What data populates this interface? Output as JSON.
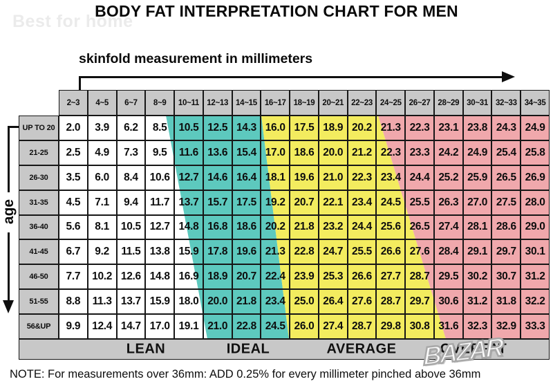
{
  "title": "BODY FAT INTERPRETATION CHART FOR MEN",
  "watermark_top": "Best for home",
  "watermark_bottom": "BAZAR",
  "note": "NOTE: For measurements over 36mm: ADD 0.25% for every millimeter pinched above 36mm",
  "colors": {
    "lean_white": "#FFFFFF",
    "ideal_teal": "#5DC9BE",
    "average_yellow": "#F3EC5F",
    "overfat_pink": "#F0A8AC",
    "header_gray": "#C8C8C8",
    "grid_line": "#161616"
  },
  "chart_data": {
    "type": "heatmap",
    "title": "BODY FAT INTERPRETATION CHART FOR MEN",
    "xlabel": "skinfold measurement in millimeters",
    "ylabel": "age",
    "columns": [
      "2~3",
      "4~5",
      "6~7",
      "8~9",
      "10~11",
      "12~13",
      "14~15",
      "16~17",
      "18~19",
      "20~21",
      "22~23",
      "24~25",
      "26~27",
      "28~29",
      "30~31",
      "32~33",
      "34~35"
    ],
    "rows": [
      "UP TO 20",
      "21-25",
      "26-30",
      "31-35",
      "36-40",
      "41-45",
      "46-50",
      "51-55",
      "56&UP"
    ],
    "values": [
      [
        "2.0",
        "3.9",
        "6.2",
        "8.5",
        "10.5",
        "12.5",
        "14.3",
        "16.0",
        "17.5",
        "18.9",
        "20.2",
        "21.3",
        "22.3",
        "23.1",
        "23.8",
        "24.3",
        "24.9"
      ],
      [
        "2.5",
        "4.9",
        "7.3",
        "9.5",
        "11.6",
        "13.6",
        "15.4",
        "17.0",
        "18.6",
        "20.0",
        "21.2",
        "22.3",
        "23.3",
        "24.2",
        "24.9",
        "25.4",
        "25.8"
      ],
      [
        "3.5",
        "6.0",
        "8.4",
        "10.6",
        "12.7",
        "14.6",
        "16.4",
        "18.1",
        "19.6",
        "21.0",
        "22.3",
        "23.4",
        "24.4",
        "25.2",
        "25.9",
        "26.5",
        "26.9"
      ],
      [
        "4.5",
        "7.1",
        "9.4",
        "11.7",
        "13.7",
        "15.7",
        "17.5",
        "19.2",
        "20.7",
        "22.1",
        "23.4",
        "24.5",
        "25.5",
        "26.3",
        "27.0",
        "27.5",
        "28.0"
      ],
      [
        "5.6",
        "8.1",
        "10.5",
        "12.7",
        "14.8",
        "16.8",
        "18.6",
        "20.2",
        "21.8",
        "23.2",
        "24.4",
        "25.6",
        "26.5",
        "27.4",
        "28.1",
        "28.6",
        "29.0"
      ],
      [
        "6.7",
        "9.2",
        "11.5",
        "13.8",
        "15.9",
        "17.8",
        "19.6",
        "21.3",
        "22.8",
        "24.7",
        "25.5",
        "26.6",
        "27.6",
        "28.4",
        "29.1",
        "29.7",
        "30.1"
      ],
      [
        "7.7",
        "10.2",
        "12.6",
        "14.8",
        "16.9",
        "18.9",
        "20.7",
        "22.4",
        "23.9",
        "25.3",
        "26.6",
        "27.7",
        "28.7",
        "29.5",
        "30.2",
        "30.7",
        "31.2"
      ],
      [
        "8.8",
        "11.3",
        "13.7",
        "15.9",
        "18.0",
        "20.0",
        "21.8",
        "23.4",
        "25.0",
        "26.4",
        "27.6",
        "28.7",
        "29.7",
        "30.6",
        "31.2",
        "31.8",
        "32.2"
      ],
      [
        "9.9",
        "12.4",
        "14.7",
        "17.0",
        "19.1",
        "21.0",
        "22.8",
        "24.5",
        "26.0",
        "27.4",
        "28.7",
        "29.8",
        "30.8",
        "31.6",
        "32.3",
        "32.9",
        "33.3"
      ]
    ],
    "zones": [
      {
        "label": "LEAN",
        "color": "#FFFFFF"
      },
      {
        "label": "IDEAL",
        "color": "#5DC9BE"
      },
      {
        "label": "AVERAGE",
        "color": "#F3EC5F"
      },
      {
        "label": "OVERFAT",
        "color": "#F0A8AC"
      }
    ],
    "note": "NOTE: For measurements over 36mm: ADD 0.25% for every millimeter pinched above 36mm"
  }
}
